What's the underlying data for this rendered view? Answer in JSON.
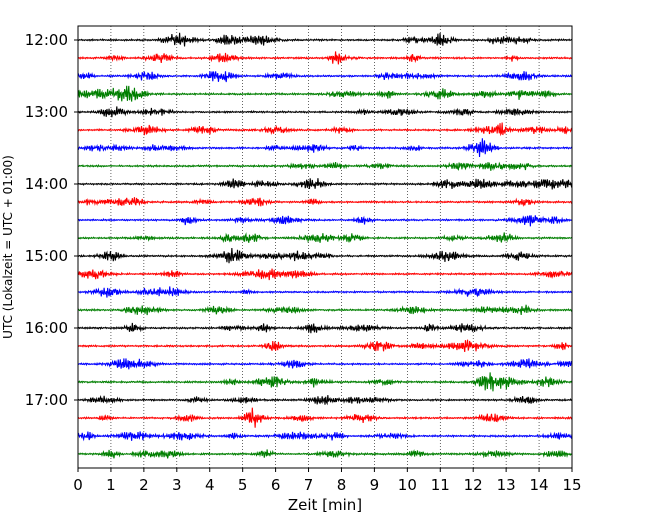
{
  "chart_data": {
    "type": "line",
    "title": "",
    "xlabel": "Zeit  [min]",
    "ylabel": "UTC (Lokalzeit = UTC + 01:00)",
    "xlim": [
      0,
      15
    ],
    "x_ticks": [
      "0",
      "1",
      "2",
      "3",
      "4",
      "5",
      "6",
      "7",
      "8",
      "9",
      "10",
      "11",
      "12",
      "13",
      "14",
      "15"
    ],
    "y_ticks": [
      "12:00",
      "13:00",
      "14:00",
      "15:00",
      "16:00",
      "17:00"
    ],
    "grid": "vertical dotted lines at each minute",
    "trace_interval_minutes": 15,
    "start_time": "12:00",
    "trace_colors": [
      "#000000",
      "#ff0000",
      "#0000ff",
      "#007f00"
    ],
    "series": [
      {
        "start": "12:00",
        "color": "#000000"
      },
      {
        "start": "12:15",
        "color": "#ff0000"
      },
      {
        "start": "12:30",
        "color": "#0000ff"
      },
      {
        "start": "12:45",
        "color": "#007f00"
      },
      {
        "start": "13:00",
        "color": "#000000"
      },
      {
        "start": "13:15",
        "color": "#ff0000"
      },
      {
        "start": "13:30",
        "color": "#0000ff"
      },
      {
        "start": "13:45",
        "color": "#007f00"
      },
      {
        "start": "14:00",
        "color": "#000000"
      },
      {
        "start": "14:15",
        "color": "#ff0000"
      },
      {
        "start": "14:30",
        "color": "#0000ff"
      },
      {
        "start": "14:45",
        "color": "#007f00"
      },
      {
        "start": "15:00",
        "color": "#000000"
      },
      {
        "start": "15:15",
        "color": "#ff0000"
      },
      {
        "start": "15:30",
        "color": "#0000ff"
      },
      {
        "start": "15:45",
        "color": "#007f00"
      },
      {
        "start": "16:00",
        "color": "#000000"
      },
      {
        "start": "16:15",
        "color": "#ff0000"
      },
      {
        "start": "16:30",
        "color": "#0000ff"
      },
      {
        "start": "16:45",
        "color": "#007f00"
      },
      {
        "start": "17:00",
        "color": "#000000"
      },
      {
        "start": "17:15",
        "color": "#ff0000"
      },
      {
        "start": "17:30",
        "color": "#0000ff"
      },
      {
        "start": "17:45",
        "color": "#007f00"
      }
    ]
  }
}
